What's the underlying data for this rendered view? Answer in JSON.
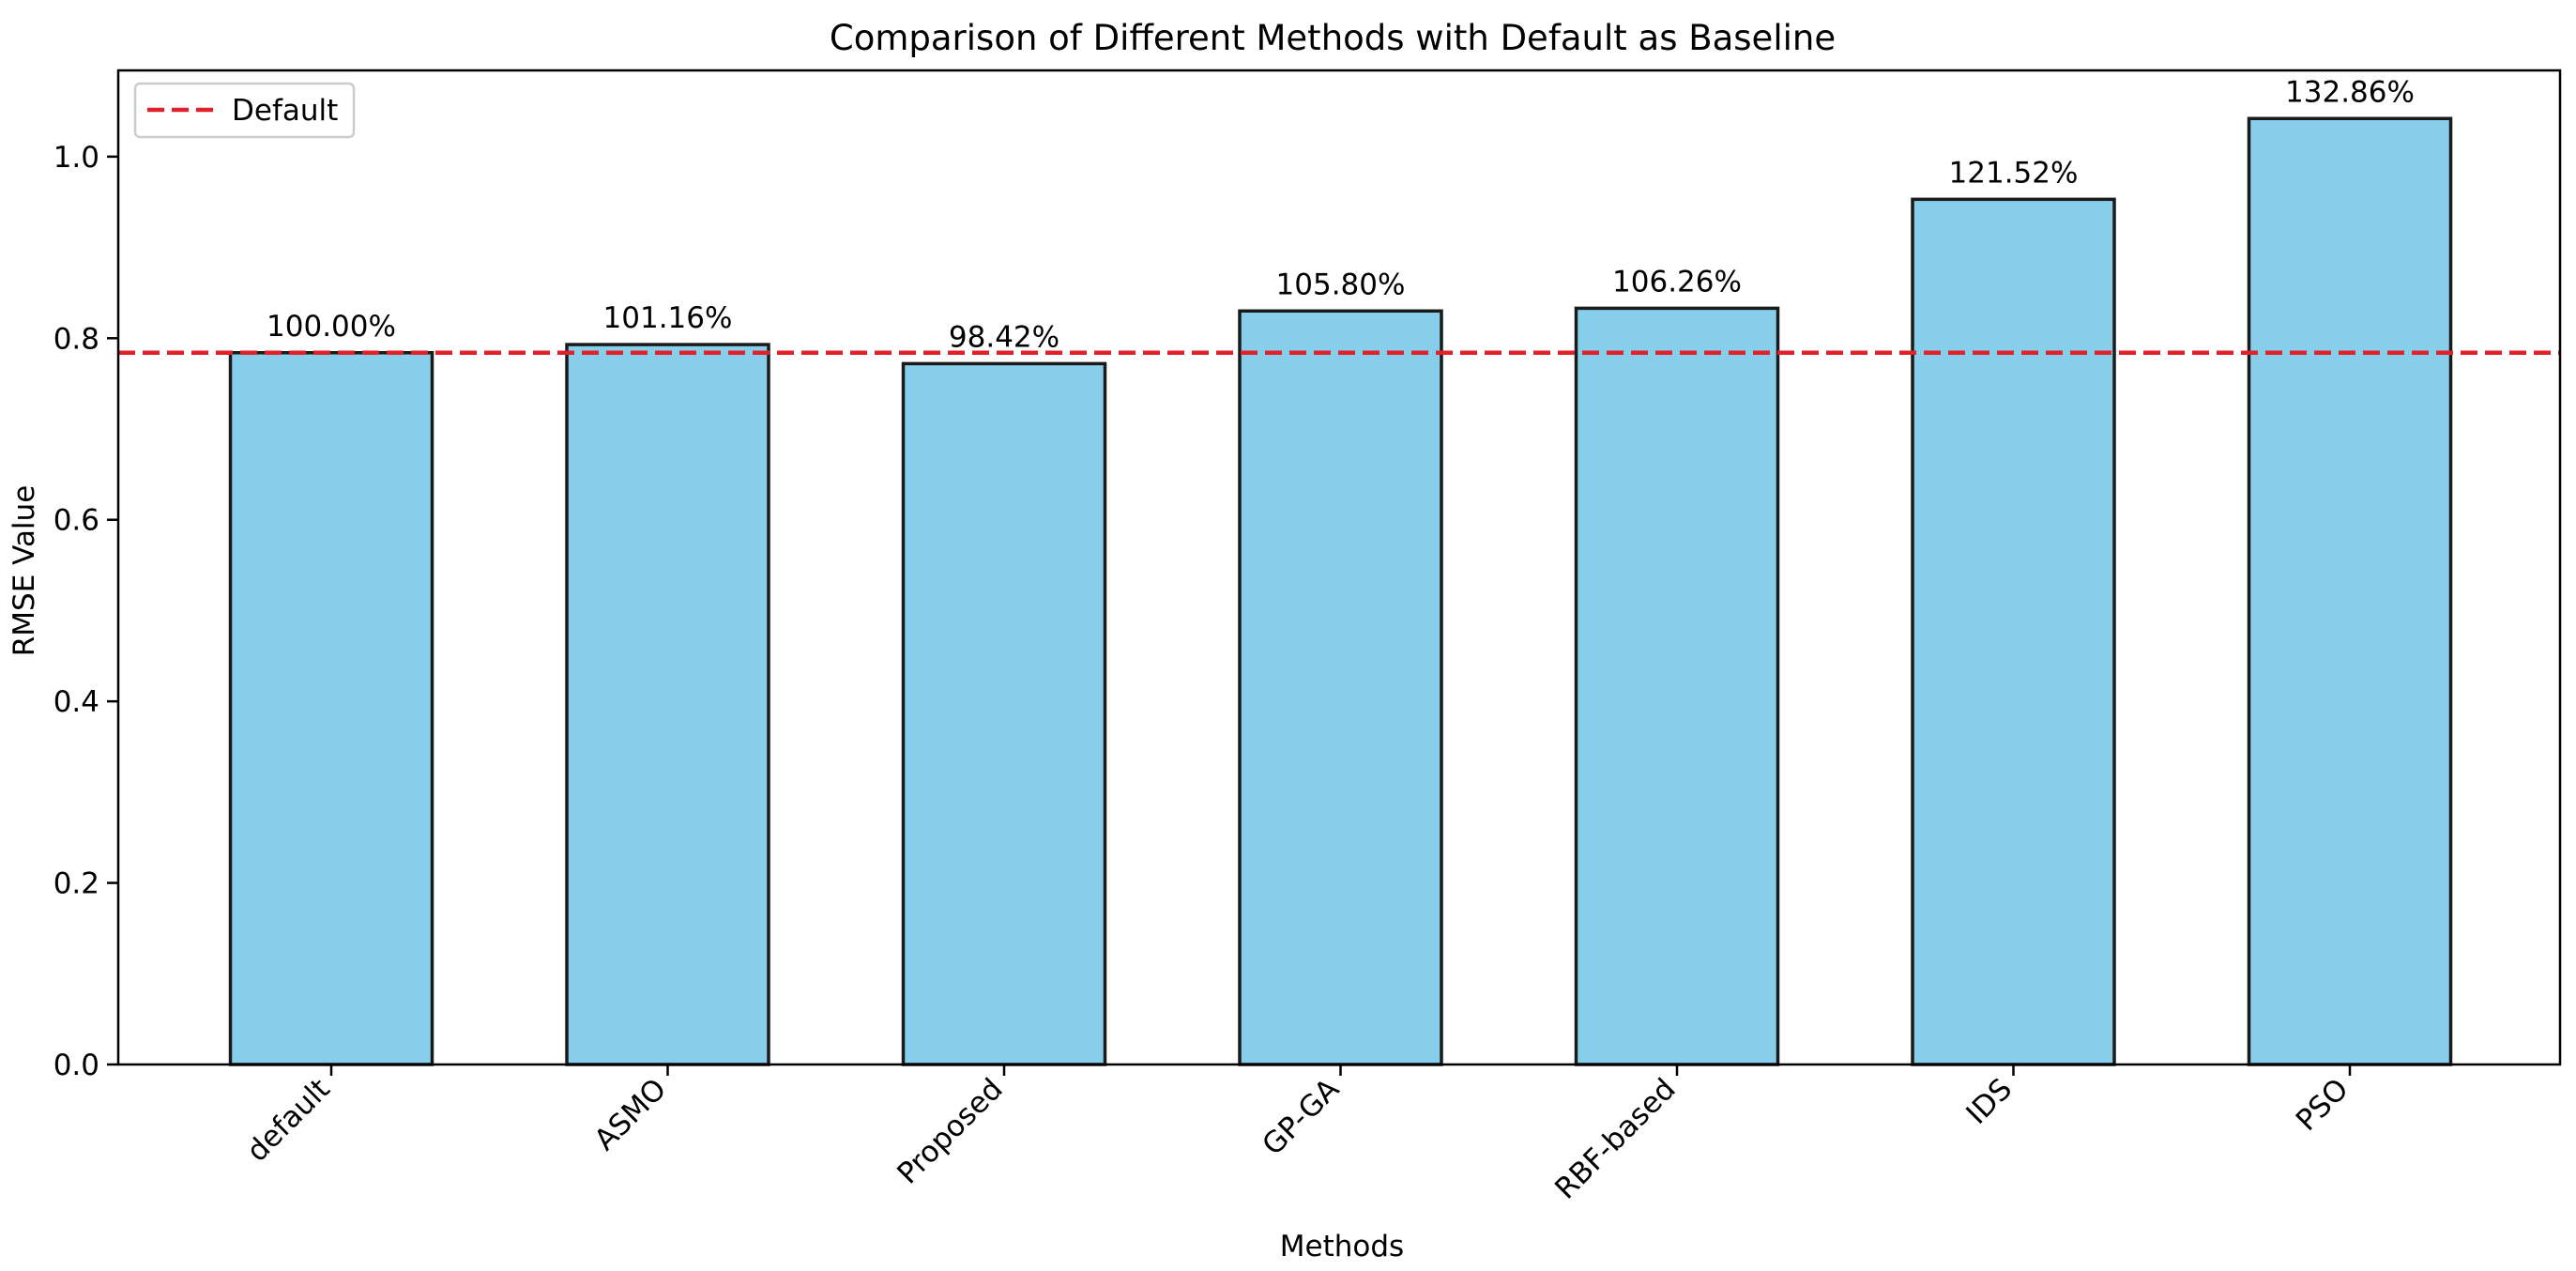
{
  "chart_data": {
    "type": "bar",
    "title": "Comparison of Different Methods with Default as Baseline",
    "xlabel": "Methods",
    "ylabel": "RMSE Value",
    "categories": [
      "default",
      "ASMO",
      "Proposed",
      "GP-GA",
      "RBF-based",
      "IDS",
      "PSO"
    ],
    "values": [
      0.784,
      0.793,
      0.772,
      0.83,
      0.833,
      0.953,
      1.042
    ],
    "bar_labels": [
      "100.00%",
      "101.16%",
      "98.42%",
      "105.80%",
      "106.26%",
      "121.52%",
      "132.86%"
    ],
    "ylim": [
      0,
      1.095
    ],
    "yticks": [
      0.0,
      0.2,
      0.4,
      0.6,
      0.8,
      1.0
    ],
    "ytick_labels": [
      "0.0",
      "0.2",
      "0.4",
      "0.6",
      "0.8",
      "1.0"
    ],
    "baseline": {
      "name": "Default",
      "value": 0.784,
      "style": "dashed"
    },
    "legend": {
      "position": "top-left",
      "entries": [
        "Default"
      ]
    },
    "grid": false,
    "colors": {
      "bar_fill": "#87CEEB",
      "bar_edge": "#1a1a1a",
      "baseline": "#e0202a"
    }
  }
}
